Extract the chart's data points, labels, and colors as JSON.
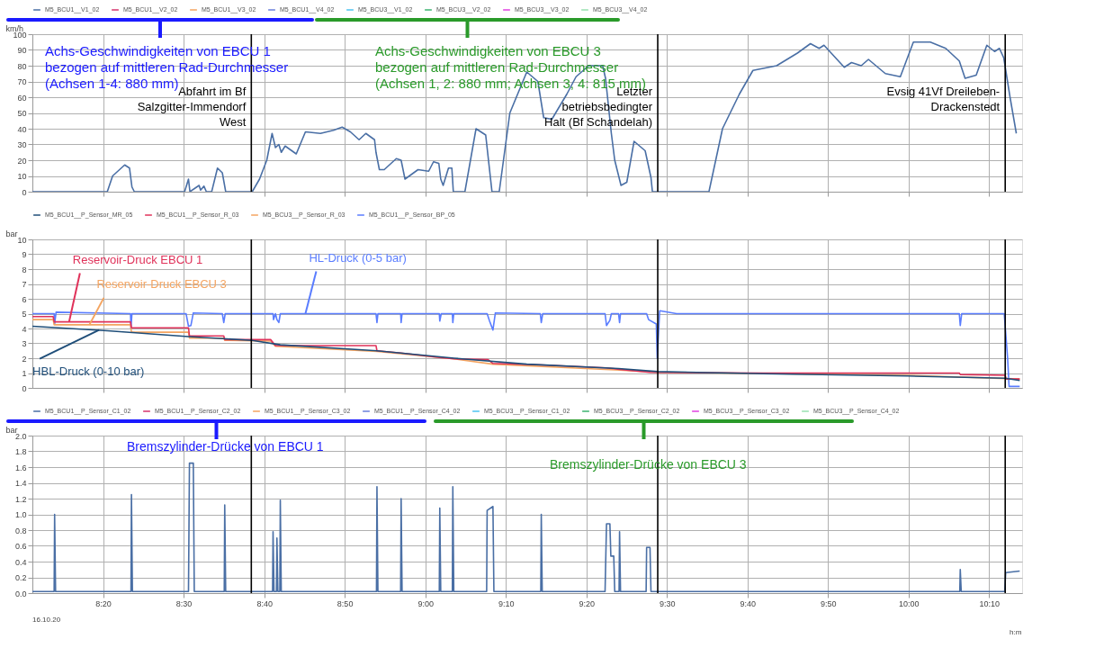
{
  "chart_data": [
    {
      "type": "line",
      "ylabel": "km/h",
      "xlim": [
        8.187,
        10.235
      ],
      "ylim": [
        0,
        100
      ],
      "xticks": [
        {
          "value": 8.3333,
          "label": null
        },
        {
          "value": 8.5,
          "label": null
        },
        {
          "value": 8.6667,
          "label": null
        },
        {
          "value": 8.8333,
          "label": null
        },
        {
          "value": 9,
          "label": null
        },
        {
          "value": 9.1667,
          "label": null
        },
        {
          "value": 9.3333,
          "label": null
        },
        {
          "value": 9.5,
          "label": null
        },
        {
          "value": 9.6667,
          "label": null
        },
        {
          "value": 9.8333,
          "label": null
        },
        {
          "value": 10,
          "label": null
        },
        {
          "value": 10.1667,
          "label": null
        }
      ],
      "yticks": [
        0,
        10,
        20,
        30,
        40,
        50,
        60,
        70,
        80,
        90,
        100
      ],
      "grid": true,
      "legend": "top",
      "tick_labels": "y",
      "x": [
        8.187,
        8.342,
        8.353,
        8.378,
        8.388,
        8.393,
        8.398,
        8.502,
        8.51,
        8.513,
        8.532,
        8.535,
        8.542,
        8.547,
        8.558,
        8.57,
        8.58,
        8.587,
        8.642,
        8.657,
        8.672,
        8.683,
        8.69,
        8.697,
        8.702,
        8.71,
        8.733,
        8.752,
        8.783,
        8.81,
        8.828,
        8.845,
        8.863,
        8.877,
        8.895,
        8.898,
        8.905,
        8.915,
        8.94,
        8.95,
        8.958,
        8.985,
        9.007,
        9.017,
        9.028,
        9.032,
        9.037,
        9.048,
        9.055,
        9.058,
        9.082,
        9.105,
        9.125,
        9.138,
        9.153,
        9.175,
        9.21,
        9.233,
        9.245,
        9.262,
        9.293,
        9.312,
        9.338,
        9.367,
        9.373,
        9.385,
        9.392,
        9.405,
        9.417,
        9.432,
        9.455,
        9.467,
        9.47,
        9.587,
        9.615,
        9.65,
        9.678,
        9.727,
        9.77,
        9.797,
        9.815,
        9.825,
        9.867,
        9.882,
        9.902,
        9.917,
        9.952,
        9.983,
        10.01,
        10.045,
        10.077,
        10.105,
        10.117,
        10.14,
        10.162,
        10.178,
        10.188,
        10.197,
        10.21,
        10.223
      ],
      "series": [
        {
          "name": "M5_BCU1__V1_02",
          "color": "#4a6fa5",
          "values": [
            0,
            0,
            10,
            17,
            15,
            3,
            0,
            0,
            8,
            0,
            4,
            1,
            3.5,
            0,
            0,
            15,
            12,
            0,
            0,
            8,
            20,
            37,
            28,
            30,
            25,
            29,
            24,
            38,
            37,
            39,
            41,
            38,
            33,
            37,
            33,
            25,
            14,
            14,
            21,
            20,
            8,
            14,
            13,
            19,
            18,
            8,
            4,
            15,
            15,
            0,
            0,
            40,
            36,
            0,
            0,
            50,
            76,
            70,
            47,
            46,
            62,
            73,
            80,
            80,
            72,
            37,
            20,
            4,
            6,
            32,
            26,
            9,
            0,
            0,
            40,
            62,
            77,
            80,
            88,
            94,
            91,
            93,
            79,
            82,
            80,
            84,
            75,
            73,
            95,
            95,
            91,
            83,
            72,
            74,
            93,
            89,
            91,
            85,
            60,
            37
          ]
        },
        {
          "name": "M5_BCU1__V2_02",
          "color": "#d6336c",
          "values": [
            null,
            null,
            null,
            null,
            null,
            null,
            null,
            null,
            null,
            null,
            null,
            null,
            null,
            null,
            null,
            null,
            null,
            null,
            null,
            null,
            null,
            null,
            null,
            null,
            null,
            null,
            null,
            null,
            null,
            null,
            null,
            null,
            null,
            null,
            null,
            null,
            null,
            null,
            null,
            null,
            null,
            null,
            null,
            null,
            null,
            null,
            null,
            null,
            null,
            null,
            null,
            null,
            null,
            null,
            null,
            null,
            null,
            null,
            null,
            null,
            null,
            null,
            null,
            null,
            null,
            null,
            null,
            null,
            null,
            null,
            null,
            null,
            null,
            null,
            null,
            null,
            null,
            null,
            null,
            null,
            null,
            null,
            null,
            null,
            null,
            null,
            null,
            null,
            null,
            null,
            null,
            null,
            null,
            null,
            null,
            null,
            null,
            null,
            null,
            null
          ]
        },
        {
          "name": "M5_BCU1__V3_02",
          "color": "#f4a460",
          "values": [
            null,
            null,
            null,
            null,
            null,
            null,
            null,
            null,
            null,
            null,
            null,
            null,
            null,
            null,
            null,
            null,
            null,
            null,
            null,
            null,
            null,
            null,
            null,
            null,
            null,
            null,
            null,
            null,
            null,
            null,
            null,
            null,
            null,
            null,
            null,
            null,
            null,
            null,
            null,
            null,
            null,
            null,
            null,
            null,
            null,
            null,
            null,
            null,
            null,
            null,
            null,
            null,
            null,
            null,
            null,
            null,
            null,
            null,
            null,
            null,
            null,
            null,
            null,
            null,
            null,
            null,
            null,
            null,
            null,
            null,
            null,
            null,
            null,
            null,
            null,
            null,
            null,
            null,
            null,
            null,
            null,
            null,
            null,
            null,
            null,
            null,
            null,
            null,
            null,
            null,
            null,
            null,
            null,
            null,
            null,
            null,
            null,
            null,
            null,
            null
          ]
        },
        {
          "name": "M5_BCU1__V4_02",
          "color": "#6a7fdb",
          "values": [
            null,
            null,
            null,
            null,
            null,
            null,
            null,
            null,
            null,
            null,
            null,
            null,
            null,
            null,
            null,
            null,
            null,
            null,
            null,
            null,
            null,
            null,
            null,
            null,
            null,
            null,
            null,
            null,
            null,
            null,
            null,
            null,
            null,
            null,
            null,
            null,
            null,
            null,
            null,
            null,
            null,
            null,
            null,
            null,
            null,
            null,
            null,
            null,
            null,
            null,
            null,
            null,
            null,
            null,
            null,
            null,
            null,
            null,
            null,
            null,
            null,
            null,
            null,
            null,
            null,
            null,
            null,
            null,
            null,
            null,
            null,
            null,
            null,
            null,
            null,
            null,
            null,
            null,
            null,
            null,
            null,
            null,
            null,
            null,
            null,
            null,
            null,
            null,
            null,
            null,
            null,
            null,
            null,
            null,
            null,
            null,
            null,
            null,
            null,
            null
          ]
        },
        {
          "name": "M5_BCU3__V1_02",
          "color": "#4dc3f0",
          "values": [
            null,
            null,
            null,
            null,
            null,
            null,
            null,
            null,
            null,
            null,
            null,
            null,
            null,
            null,
            null,
            null,
            null,
            null,
            null,
            null,
            null,
            null,
            null,
            null,
            null,
            null,
            null,
            null,
            null,
            null,
            null,
            null,
            null,
            null,
            null,
            null,
            null,
            null,
            null,
            null,
            null,
            null,
            null,
            null,
            null,
            null,
            null,
            null,
            null,
            null,
            null,
            null,
            null,
            null,
            null,
            null,
            null,
            null,
            null,
            null,
            null,
            null,
            null,
            null,
            null,
            null,
            null,
            null,
            null,
            null,
            null,
            null,
            null,
            null,
            null,
            null,
            null,
            null,
            null,
            null,
            null,
            null,
            null,
            null,
            null,
            null,
            null,
            null,
            null,
            null,
            null,
            null,
            null,
            null,
            null,
            null,
            null,
            null,
            null,
            null
          ]
        },
        {
          "name": "M5_BCU3__V2_02",
          "color": "#3cb371",
          "values": [
            null,
            null,
            null,
            null,
            null,
            null,
            null,
            null,
            null,
            null,
            null,
            null,
            null,
            null,
            null,
            null,
            null,
            null,
            null,
            null,
            null,
            null,
            null,
            null,
            null,
            null,
            null,
            null,
            null,
            null,
            null,
            null,
            null,
            null,
            null,
            null,
            null,
            null,
            null,
            null,
            null,
            null,
            null,
            null,
            null,
            null,
            null,
            null,
            null,
            null,
            null,
            null,
            null,
            null,
            null,
            null,
            null,
            null,
            null,
            null,
            null,
            null,
            null,
            null,
            null,
            null,
            null,
            null,
            null,
            null,
            null,
            null,
            null,
            null,
            null,
            null,
            null,
            null,
            null,
            null,
            null,
            null,
            null,
            null,
            null,
            null,
            null,
            null,
            null,
            null,
            null,
            null,
            null,
            null,
            null,
            null,
            null,
            null,
            null,
            null
          ]
        },
        {
          "name": "M5_BCU3__V3_02",
          "color": "#e040e0",
          "values": [
            null,
            null,
            null,
            null,
            null,
            null,
            null,
            null,
            null,
            null,
            null,
            null,
            null,
            null,
            null,
            null,
            null,
            null,
            null,
            null,
            null,
            null,
            null,
            null,
            null,
            null,
            null,
            null,
            null,
            null,
            null,
            null,
            null,
            null,
            null,
            null,
            null,
            null,
            null,
            null,
            null,
            null,
            null,
            null,
            null,
            null,
            null,
            null,
            null,
            null,
            null,
            null,
            null,
            null,
            null,
            null,
            null,
            null,
            null,
            null,
            null,
            null,
            null,
            null,
            null,
            null,
            null,
            null,
            null,
            null,
            null,
            null,
            null,
            null,
            null,
            null,
            null,
            null,
            null,
            null,
            null,
            null,
            null,
            null,
            null,
            null,
            null,
            null,
            null,
            null,
            null,
            null,
            null,
            null,
            null,
            null,
            null,
            null,
            null,
            null
          ]
        },
        {
          "name": "M5_BCU3__V4_02",
          "color": "#98e0b0",
          "values": [
            null,
            null,
            null,
            null,
            null,
            null,
            null,
            null,
            null,
            null,
            null,
            null,
            null,
            null,
            null,
            null,
            null,
            null,
            null,
            null,
            null,
            null,
            null,
            null,
            null,
            null,
            null,
            null,
            null,
            null,
            null,
            null,
            null,
            null,
            null,
            null,
            null,
            null,
            null,
            null,
            null,
            null,
            null,
            null,
            null,
            null,
            null,
            null,
            null,
            null,
            null,
            null,
            null,
            null,
            null,
            null,
            null,
            null,
            null,
            null,
            null,
            null,
            null,
            null,
            null,
            null,
            null,
            null,
            null,
            null,
            null,
            null,
            null,
            null,
            null,
            null,
            null,
            null,
            null,
            null,
            null,
            null,
            null,
            null,
            null,
            null,
            null,
            null,
            null,
            null,
            null,
            null,
            null,
            null,
            null,
            null,
            null,
            null,
            null,
            null
          ]
        }
      ],
      "ref_lines": [
        {
          "axis": "x",
          "value": 8.64,
          "label": "Abfahrt im Bf\nSalzgitter-Immendorf\nWest",
          "color": "#000000"
        },
        {
          "axis": "x",
          "value": 9.481,
          "label": "Letzter\nbetriebsbedingter\nHalt (Bf Schandelah)",
          "color": "#000000"
        },
        {
          "axis": "x",
          "value": 10.2,
          "label": "Evsig 41Vf Dreileben-\nDrackenstedt",
          "color": "#000000"
        }
      ],
      "annotations": [
        "Achs-Geschwindigkeiten von EBCU 1\nbezogen auf mittleren Rad-Durchmesser\n(Achsen 1-4: 880 mm)",
        "Achs-Geschwindigkeiten von EBCU 3\nbezogen auf mittleren Rad-Durchmesser\n(Achsen 1, 2: 880 mm; Achsen 3, 4: 815 mm)"
      ]
    },
    {
      "type": "line",
      "ylabel": "bar",
      "xlim": [
        8.187,
        10.235
      ],
      "ylim": [
        0,
        10
      ],
      "xticks": [
        {
          "value": 8.3333,
          "label": null
        },
        {
          "value": 8.5,
          "label": null
        },
        {
          "value": 8.6667,
          "label": null
        },
        {
          "value": 8.8333,
          "label": null
        },
        {
          "value": 9,
          "label": null
        },
        {
          "value": 9.1667,
          "label": null
        },
        {
          "value": 9.3333,
          "label": null
        },
        {
          "value": 9.5,
          "label": null
        },
        {
          "value": 9.6667,
          "label": null
        },
        {
          "value": 9.8333,
          "label": null
        },
        {
          "value": 10,
          "label": null
        },
        {
          "value": 10.1667,
          "label": null
        }
      ],
      "yticks": [
        0,
        1,
        2,
        3,
        4,
        5,
        6,
        7,
        8,
        9,
        10
      ],
      "grid": true,
      "legend": "top",
      "tick_labels": "y",
      "series": [
        {
          "name": "M5_BCU1__P_Sensor_MR_05",
          "color": "#1f4e79",
          "x": [
            8.187,
            8.342,
            8.51,
            8.642,
            8.7,
            8.9,
            9.06,
            9.21,
            9.4,
            9.481,
            9.7,
            10.0,
            10.2,
            10.23
          ],
          "values": [
            4.15,
            3.85,
            3.45,
            3.2,
            2.9,
            2.5,
            2.0,
            1.6,
            1.3,
            1.1,
            0.95,
            0.8,
            0.65,
            0.5
          ]
        },
        {
          "name": "M5_BCU1__P_Sensor_R_03",
          "color": "#e0325a",
          "x": [
            8.187,
            8.23,
            8.232,
            8.39,
            8.392,
            8.51,
            8.512,
            8.583,
            8.585,
            8.68,
            8.69,
            8.898,
            8.9,
            8.95,
            9.03,
            9.06,
            9.13,
            9.14,
            9.24,
            9.375,
            9.402,
            9.465,
            9.7,
            10.105,
            10.107,
            10.2,
            10.202,
            10.23
          ],
          "values": [
            4.8,
            4.8,
            4.45,
            4.45,
            4.05,
            4.05,
            3.5,
            3.5,
            3.25,
            3.25,
            2.85,
            2.85,
            2.5,
            2.35,
            2.05,
            1.95,
            1.9,
            1.65,
            1.55,
            1.35,
            1.25,
            1.05,
            1.0,
            1.0,
            0.9,
            0.85,
            0.6,
            0.6
          ]
        },
        {
          "name": "M5_BCU3__P_Sensor_R_03",
          "color": "#f4a460",
          "x": [
            8.187,
            8.23,
            8.232,
            8.39,
            8.392,
            8.51,
            8.512,
            8.583,
            8.585,
            8.68,
            8.69,
            8.9,
            9.06,
            9.14,
            9.402,
            9.481,
            10.0,
            10.23
          ],
          "values": [
            4.6,
            4.6,
            4.25,
            4.25,
            3.75,
            3.75,
            3.35,
            3.35,
            3.2,
            3.15,
            2.8,
            2.45,
            1.95,
            1.6,
            1.2,
            1.05,
            0.85,
            0.6
          ]
        },
        {
          "name": "M5_BCU1__P_Sensor_BP_05",
          "color": "#5a7dff",
          "x": [
            8.187,
            8.232,
            8.233,
            8.236,
            8.39,
            8.391,
            8.393,
            8.505,
            8.51,
            8.515,
            8.52,
            8.58,
            8.583,
            8.586,
            8.685,
            8.686,
            8.69,
            8.693,
            8.697,
            8.7,
            8.898,
            8.9,
            8.902,
            8.949,
            8.95,
            8.952,
            9.029,
            9.03,
            9.033,
            9.056,
            9.057,
            9.059,
            9.128,
            9.133,
            9.14,
            9.145,
            9.238,
            9.24,
            9.243,
            9.372,
            9.375,
            9.382,
            9.385,
            9.4,
            9.402,
            9.404,
            9.458,
            9.462,
            9.478,
            9.48,
            9.485,
            9.52,
            10.105,
            10.107,
            10.11,
            10.198,
            10.205,
            10.208,
            10.23
          ],
          "values": [
            5.0,
            5.0,
            4.3,
            5.1,
            5.0,
            4.0,
            5.0,
            5.0,
            4.15,
            4.2,
            5.05,
            5.0,
            4.4,
            5.0,
            5.0,
            4.6,
            5.0,
            4.6,
            4.4,
            5.0,
            5.0,
            4.4,
            5.0,
            5.0,
            4.4,
            5.0,
            5.0,
            4.5,
            5.0,
            5.0,
            4.4,
            5.0,
            5.0,
            4.5,
            3.9,
            5.05,
            5.0,
            4.4,
            5.0,
            5.0,
            4.2,
            4.55,
            5.0,
            5.0,
            4.4,
            5.0,
            5.0,
            4.6,
            4.3,
            2.0,
            5.2,
            5.0,
            5.0,
            4.2,
            5.0,
            5.0,
            2.0,
            0.1,
            0.1
          ]
        }
      ],
      "ref_lines": [
        {
          "axis": "x",
          "value": 8.64,
          "color": "#000000"
        },
        {
          "axis": "x",
          "value": 9.481,
          "color": "#000000"
        },
        {
          "axis": "x",
          "value": 10.2,
          "color": "#000000"
        }
      ],
      "annotations": [
        {
          "text": "Reservoir-Druck EBCU 1",
          "x": 8.263,
          "y": 4.45
        },
        {
          "text": "Reservoir-Druck EBCU 3",
          "x": 8.305,
          "y": 4.25
        },
        {
          "text": "HL-Druck (0-5 bar)",
          "x": 8.752,
          "y": 5.0
        },
        {
          "text": "HBL-Druck (0-10 bar)",
          "x": 8.325,
          "y": 3.9
        }
      ]
    },
    {
      "type": "line",
      "ylabel": "bar",
      "xlim": [
        8.187,
        10.235
      ],
      "ylim": [
        0,
        2
      ],
      "xticks": [
        {
          "value": 8.3333,
          "label": "8:20"
        },
        {
          "value": 8.5,
          "label": "8:30"
        },
        {
          "value": 8.6667,
          "label": "8:40"
        },
        {
          "value": 8.8333,
          "label": "8:50"
        },
        {
          "value": 9,
          "label": "9:00"
        },
        {
          "value": 9.1667,
          "label": "9:10"
        },
        {
          "value": 9.3333,
          "label": "9:20"
        },
        {
          "value": 9.5,
          "label": "9:30"
        },
        {
          "value": 9.6667,
          "label": "9:40"
        },
        {
          "value": 9.8333,
          "label": "9:50"
        },
        {
          "value": 10,
          "label": "10:00"
        },
        {
          "value": 10.1667,
          "label": "10:10"
        }
      ],
      "yticks": [
        {
          "value": 0,
          "label": "0.0"
        },
        {
          "value": 0.2,
          "label": "0.2"
        },
        {
          "value": 0.4,
          "label": "0.4"
        },
        {
          "value": 0.6,
          "label": "0.6"
        },
        {
          "value": 0.8,
          "label": "0.8"
        },
        {
          "value": 1,
          "label": "1.0"
        },
        {
          "value": 1.2,
          "label": "1.2"
        },
        {
          "value": 1.4,
          "label": "1.4"
        },
        {
          "value": 1.6,
          "label": "1.6"
        },
        {
          "value": 1.8,
          "label": "1.8"
        },
        {
          "value": 2,
          "label": "2.0"
        }
      ],
      "grid": true,
      "legend": "top",
      "x": [
        8.187,
        8.232,
        8.233,
        8.235,
        8.391,
        8.392,
        8.394,
        8.51,
        8.512,
        8.52,
        8.522,
        8.584,
        8.585,
        8.587,
        8.684,
        8.685,
        8.687,
        8.692,
        8.693,
        8.695,
        8.699,
        8.7,
        8.702,
        8.899,
        8.9,
        8.902,
        8.949,
        8.95,
        8.952,
        9.029,
        9.03,
        9.032,
        9.056,
        9.057,
        9.059,
        9.127,
        9.128,
        9.14,
        9.142,
        9.239,
        9.24,
        9.242,
        9.372,
        9.375,
        9.382,
        9.384,
        9.39,
        9.392,
        9.401,
        9.402,
        9.404,
        9.457,
        9.458,
        9.465,
        9.467,
        10.106,
        10.107,
        10.109,
        10.199,
        10.201,
        10.23
      ],
      "series": [
        {
          "name": "M5_BCU1__P_Sensor_C1_02",
          "color": "#4a6fa5",
          "values": [
            0.02,
            0.02,
            1.0,
            0.02,
            0.02,
            1.25,
            0.02,
            0.02,
            1.65,
            1.65,
            0.02,
            0.02,
            1.12,
            0.02,
            0.02,
            0.78,
            0.02,
            0.02,
            0.7,
            0.02,
            0.02,
            1.18,
            0.02,
            0.02,
            1.35,
            0.02,
            0.02,
            1.2,
            0.02,
            0.02,
            1.08,
            0.02,
            0.02,
            1.35,
            0.02,
            0.02,
            1.05,
            1.1,
            0.02,
            0.02,
            1.0,
            0.02,
            0.02,
            0.88,
            0.88,
            0.47,
            0.47,
            0.02,
            0.02,
            0.78,
            0.02,
            0.02,
            0.58,
            0.58,
            0.02,
            0.02,
            0.3,
            0.02,
            0.02,
            0.26,
            0.28
          ]
        },
        {
          "name": "M5_BCU1__P_Sensor_C2_02",
          "color": "#d6336c",
          "values": [
            null,
            null,
            null,
            null,
            null,
            null,
            null,
            null,
            null,
            null,
            null,
            null,
            null,
            null,
            null,
            null,
            null,
            null,
            null,
            null,
            null,
            null,
            null,
            null,
            null,
            null,
            null,
            null,
            null,
            null,
            null,
            null,
            null,
            null,
            null,
            null,
            null,
            null,
            null,
            null,
            null,
            null,
            null,
            null,
            null,
            null,
            null,
            null,
            null,
            null,
            null,
            null,
            null,
            null,
            null,
            null,
            null,
            null,
            null,
            null,
            null
          ]
        },
        {
          "name": "M5_BCU1__P_Sensor_C3_02",
          "color": "#f4a460",
          "values": [
            null,
            null,
            null,
            null,
            null,
            null,
            null,
            null,
            null,
            null,
            null,
            null,
            null,
            null,
            null,
            null,
            null,
            null,
            null,
            null,
            null,
            null,
            null,
            null,
            null,
            null,
            null,
            null,
            null,
            null,
            null,
            null,
            null,
            null,
            null,
            null,
            null,
            null,
            null,
            null,
            null,
            null,
            null,
            null,
            null,
            null,
            null,
            null,
            null,
            null,
            null,
            null,
            null,
            null,
            null,
            null,
            null,
            null,
            null,
            null,
            null
          ]
        },
        {
          "name": "M5_BCU1__P_Sensor_C4_02",
          "color": "#6a7fdb",
          "values": [
            null,
            null,
            null,
            null,
            null,
            null,
            null,
            null,
            null,
            null,
            null,
            null,
            null,
            null,
            null,
            null,
            null,
            null,
            null,
            null,
            null,
            null,
            null,
            null,
            null,
            null,
            null,
            null,
            null,
            null,
            null,
            null,
            null,
            null,
            null,
            null,
            null,
            null,
            null,
            null,
            null,
            null,
            null,
            null,
            null,
            null,
            null,
            null,
            null,
            null,
            null,
            null,
            null,
            null,
            null,
            null,
            null,
            null,
            null,
            null,
            null
          ]
        },
        {
          "name": "M5_BCU3__P_Sensor_C1_02",
          "color": "#4dc3f0",
          "values": [
            null,
            null,
            null,
            null,
            null,
            null,
            null,
            null,
            null,
            null,
            null,
            null,
            null,
            null,
            null,
            null,
            null,
            null,
            null,
            null,
            null,
            null,
            null,
            null,
            null,
            null,
            null,
            null,
            null,
            null,
            null,
            null,
            null,
            null,
            null,
            null,
            null,
            null,
            null,
            null,
            null,
            null,
            null,
            null,
            null,
            null,
            null,
            null,
            null,
            null,
            null,
            null,
            null,
            null,
            null,
            null,
            null,
            null,
            null,
            null,
            null
          ]
        },
        {
          "name": "M5_BCU3__P_Sensor_C2_02",
          "color": "#3cb371",
          "values": [
            null,
            null,
            null,
            null,
            null,
            null,
            null,
            null,
            null,
            null,
            null,
            null,
            null,
            null,
            null,
            null,
            null,
            null,
            null,
            null,
            null,
            null,
            null,
            null,
            null,
            null,
            null,
            null,
            null,
            null,
            null,
            null,
            null,
            null,
            null,
            null,
            null,
            null,
            null,
            null,
            null,
            null,
            null,
            null,
            null,
            null,
            null,
            null,
            null,
            null,
            null,
            null,
            null,
            null,
            null,
            null,
            null,
            null,
            null,
            null,
            null
          ]
        },
        {
          "name": "M5_BCU3__P_Sensor_C3_02",
          "color": "#e040e0",
          "values": [
            null,
            null,
            null,
            null,
            null,
            null,
            null,
            null,
            null,
            null,
            null,
            null,
            null,
            null,
            null,
            null,
            null,
            null,
            null,
            null,
            null,
            null,
            null,
            null,
            null,
            null,
            null,
            null,
            null,
            null,
            null,
            null,
            null,
            null,
            null,
            null,
            null,
            null,
            null,
            null,
            null,
            null,
            null,
            null,
            null,
            null,
            null,
            null,
            null,
            null,
            null,
            null,
            null,
            null,
            null,
            null,
            null,
            null,
            null,
            null,
            null
          ]
        },
        {
          "name": "M5_BCU3__P_Sensor_C4_02",
          "color": "#98e0b0",
          "values": [
            null,
            null,
            null,
            null,
            null,
            null,
            null,
            null,
            null,
            null,
            null,
            null,
            null,
            null,
            null,
            null,
            null,
            null,
            null,
            null,
            null,
            null,
            null,
            null,
            null,
            null,
            null,
            null,
            null,
            null,
            null,
            null,
            null,
            null,
            null,
            null,
            null,
            null,
            null,
            null,
            null,
            null,
            null,
            null,
            null,
            null,
            null,
            null,
            null,
            null,
            null,
            null,
            null,
            null,
            null,
            null,
            null,
            null,
            null,
            null,
            null
          ]
        }
      ],
      "ref_lines": [
        {
          "axis": "x",
          "value": 8.64,
          "color": "#000000"
        },
        {
          "axis": "x",
          "value": 9.481,
          "color": "#000000"
        },
        {
          "axis": "x",
          "value": 10.2,
          "color": "#000000"
        }
      ],
      "annotations": [
        "Bremszylinder-Drücke von EBCU 1",
        "Bremszylinder-Drücke von EBCU 3",
        "16.10.20",
        "h:m"
      ]
    }
  ]
}
